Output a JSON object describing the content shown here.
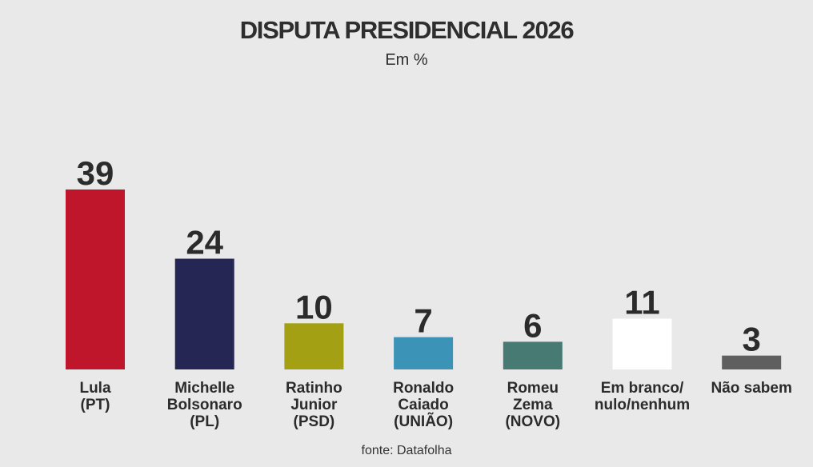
{
  "chart_data": {
    "type": "bar",
    "title": "DISPUTA PRESIDENCIAL 2026",
    "subtitle": "Em %",
    "source": "fonte: Datafolha",
    "categories": [
      [
        "Lula",
        "(PT)"
      ],
      [
        "Michelle",
        "Bolsonaro",
        "(PL)"
      ],
      [
        "Ratinho",
        "Junior",
        "(PSD)"
      ],
      [
        "Ronaldo",
        "Caiado",
        "(UNIÃO)"
      ],
      [
        "Romeu",
        "Zema",
        "(NOVO)"
      ],
      [
        "Em branco/",
        "nulo/nenhum"
      ],
      [
        "Não sabem"
      ]
    ],
    "values": [
      39,
      24,
      10,
      7,
      6,
      11,
      3
    ],
    "colors": [
      "#c0162b",
      "#262654",
      "#a3a113",
      "#3b93b7",
      "#467a73",
      "#ffffff",
      "#5f5f5f"
    ],
    "grid": false,
    "legend": "none"
  }
}
